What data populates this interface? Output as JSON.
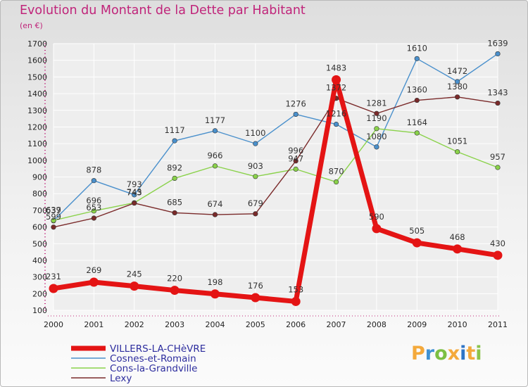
{
  "header": {
    "title": "Evolution du Montant de la Dette par Habitant",
    "unit": "(en €)"
  },
  "logo": {
    "letters": [
      "P",
      "r",
      "o",
      "x",
      "i",
      "t",
      "i"
    ],
    "colors": [
      "#f4a93b",
      "#3f91d3",
      "#7cbf43",
      "#f4a93b",
      "#2f74c6",
      "#f4a93b",
      "#8bc34a"
    ]
  },
  "chart_data": {
    "type": "line",
    "x": [
      2000,
      2001,
      2002,
      2003,
      2004,
      2005,
      2006,
      2007,
      2008,
      2009,
      2010,
      2011
    ],
    "ylim": [
      100,
      1700
    ],
    "yticks": [
      100,
      200,
      300,
      400,
      500,
      600,
      700,
      800,
      900,
      1000,
      1100,
      1200,
      1300,
      1400,
      1500,
      1600,
      1700
    ],
    "grid": true,
    "legend_position": "bottom-left",
    "series": [
      {
        "name": "VILLERS-LA-CHèVRE",
        "color": "#e41414",
        "values": [
          231,
          269,
          245,
          220,
          198,
          176,
          153,
          1483,
          590,
          505,
          468,
          430
        ]
      },
      {
        "name": "Cosnes-et-Romain",
        "color": "#4a90cc",
        "values": [
          637,
          878,
          793,
          1117,
          1177,
          1100,
          1276,
          1216,
          1080,
          1610,
          1472,
          1639
        ]
      },
      {
        "name": "Cons-la-Grandville",
        "color": "#8ad24a",
        "values": [
          639,
          696,
          745,
          892,
          966,
          903,
          947,
          870,
          1190,
          1164,
          1051,
          957
        ]
      },
      {
        "name": "Lexy",
        "color": "#7a2a2a",
        "values": [
          599,
          653,
          743,
          685,
          674,
          679,
          996,
          1372,
          1281,
          1360,
          1380,
          1343
        ]
      }
    ]
  }
}
